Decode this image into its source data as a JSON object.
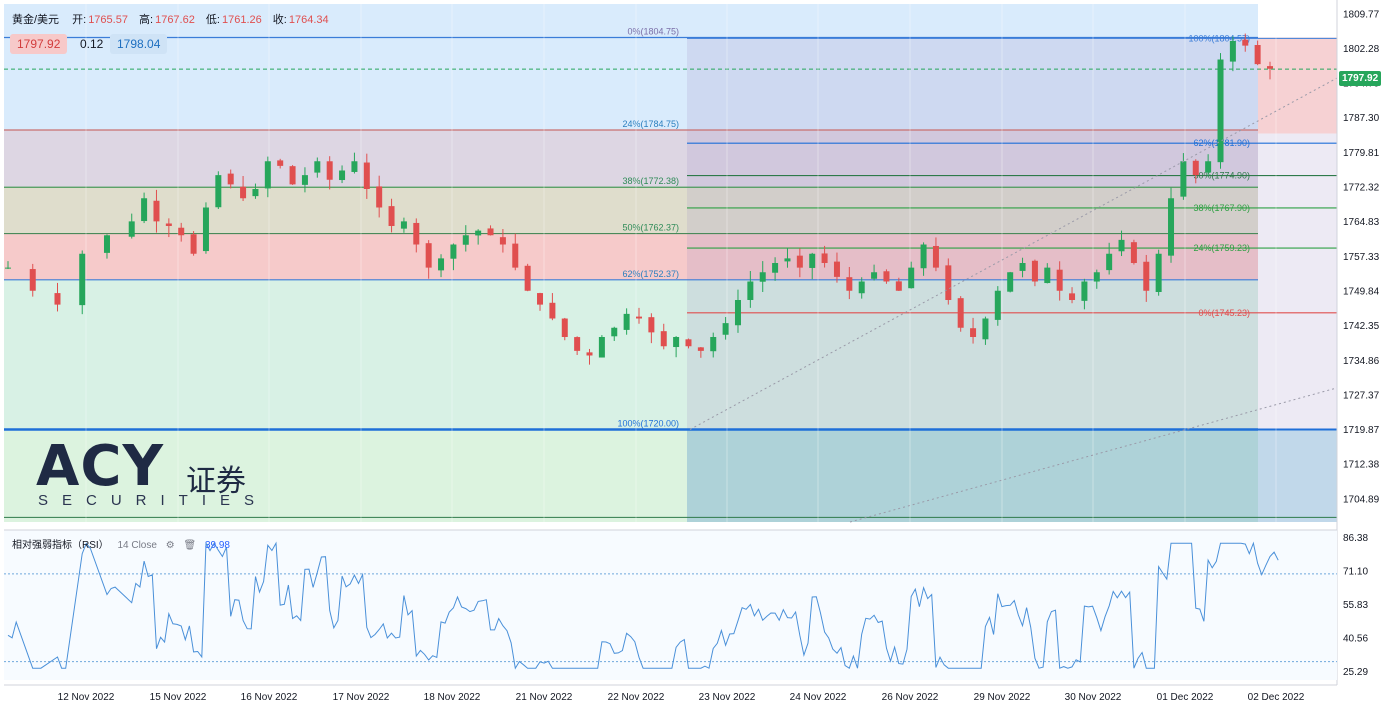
{
  "header": {
    "symbol": "黄金/美元",
    "open_label": "开:",
    "open": "1765.57",
    "high_label": "高:",
    "high": "1767.62",
    "low_label": "低:",
    "low": "1761.26",
    "close_label": "收:",
    "close": "1764.34"
  },
  "trade": {
    "sell": "1797.92",
    "spread": "0.12",
    "buy": "1798.04"
  },
  "logo": {
    "brand": "ACY",
    "cn": "证券",
    "sub": "SECURITIES"
  },
  "rsi": {
    "name": "相对强弱指标（RSI）",
    "params": "14 Close",
    "value": "39.98"
  },
  "last_price": "1797.92",
  "colors": {
    "up": "#26a65b",
    "down": "#e04f4f",
    "rsi_line": "#4a90d9",
    "fib_blue": "#3b7dd8",
    "fib_green": "#2ea043",
    "fib_red": "#e04f4f"
  },
  "chart_data": {
    "type": "candlestick",
    "title": "",
    "ylim": [
      1700,
      1812
    ],
    "y_ticks": [
      1809.77,
      1802.28,
      1794.79,
      1787.3,
      1779.81,
      1772.32,
      1764.83,
      1757.33,
      1749.84,
      1742.35,
      1734.86,
      1727.37,
      1719.87,
      1712.38,
      1704.89
    ],
    "x_ticks": [
      "12 Nov 2022",
      "15 Nov 2022",
      "16 Nov 2022",
      "17 Nov 2022",
      "18 Nov 2022",
      "21 Nov 2022",
      "22 Nov 2022",
      "23 Nov 2022",
      "24 Nov 2022",
      "26 Nov 2022",
      "29 Nov 2022",
      "30 Nov 2022",
      "01 Dec 2022",
      "02 Dec 2022"
    ],
    "close_path": [
      [
        0,
        1755
      ],
      [
        2,
        1750
      ],
      [
        4,
        1747
      ],
      [
        6,
        1758
      ],
      [
        8,
        1762
      ],
      [
        10,
        1765
      ],
      [
        11,
        1770
      ],
      [
        12,
        1765
      ],
      [
        13,
        1764
      ],
      [
        14,
        1762
      ],
      [
        15,
        1758
      ],
      [
        16,
        1768
      ],
      [
        17,
        1775
      ],
      [
        18,
        1773
      ],
      [
        19,
        1770
      ],
      [
        20,
        1772
      ],
      [
        21,
        1778
      ],
      [
        22,
        1777
      ],
      [
        23,
        1773
      ],
      [
        24,
        1775
      ],
      [
        25,
        1778
      ],
      [
        26,
        1774
      ],
      [
        27,
        1776
      ],
      [
        28,
        1778
      ],
      [
        29,
        1772
      ],
      [
        30,
        1768
      ],
      [
        31,
        1764
      ],
      [
        32,
        1765
      ],
      [
        33,
        1760
      ],
      [
        34,
        1755
      ],
      [
        35,
        1757
      ],
      [
        36,
        1760
      ],
      [
        37,
        1762
      ],
      [
        38,
        1763
      ],
      [
        39,
        1762
      ],
      [
        40,
        1760
      ],
      [
        41,
        1755
      ],
      [
        42,
        1750
      ],
      [
        43,
        1747
      ],
      [
        44,
        1744
      ],
      [
        45,
        1740
      ],
      [
        46,
        1737
      ],
      [
        47,
        1736
      ],
      [
        48,
        1740
      ],
      [
        49,
        1742
      ],
      [
        50,
        1745
      ],
      [
        51,
        1744
      ],
      [
        52,
        1741
      ],
      [
        53,
        1738
      ],
      [
        54,
        1740
      ],
      [
        55,
        1738
      ],
      [
        56,
        1737
      ],
      [
        57,
        1740
      ],
      [
        58,
        1743
      ],
      [
        59,
        1748
      ],
      [
        60,
        1752
      ],
      [
        61,
        1754
      ],
      [
        62,
        1756
      ],
      [
        63,
        1757
      ],
      [
        64,
        1755
      ],
      [
        65,
        1758
      ],
      [
        66,
        1756
      ],
      [
        67,
        1753
      ],
      [
        68,
        1750
      ],
      [
        69,
        1752
      ],
      [
        70,
        1754
      ],
      [
        71,
        1752
      ],
      [
        72,
        1750
      ],
      [
        73,
        1755
      ],
      [
        74,
        1760
      ],
      [
        75,
        1755
      ],
      [
        76,
        1748
      ],
      [
        77,
        1742
      ],
      [
        78,
        1740
      ],
      [
        79,
        1744
      ],
      [
        80,
        1750
      ],
      [
        81,
        1754
      ],
      [
        82,
        1756
      ],
      [
        83,
        1752
      ],
      [
        84,
        1755
      ],
      [
        85,
        1750
      ],
      [
        86,
        1748
      ],
      [
        87,
        1752
      ],
      [
        88,
        1754
      ],
      [
        89,
        1758
      ],
      [
        90,
        1761
      ],
      [
        91,
        1756
      ],
      [
        92,
        1750
      ],
      [
        93,
        1758
      ],
      [
        94,
        1770
      ],
      [
        95,
        1778
      ],
      [
        96,
        1775
      ],
      [
        97,
        1778
      ],
      [
        98,
        1800
      ],
      [
        99,
        1804
      ],
      [
        100,
        1803
      ],
      [
        101,
        1799
      ],
      [
        102,
        1798
      ]
    ],
    "fib_left": {
      "levels": [
        {
          "label": "0%(1804.75)",
          "value": 1804.75
        },
        {
          "label": "24%(1784.75)",
          "value": 1784.75
        },
        {
          "label": "38%(1772.38)",
          "value": 1772.38
        },
        {
          "label": "50%(1762.37)",
          "value": 1762.37
        },
        {
          "label": "62%(1752.37)",
          "value": 1752.37
        },
        {
          "label": "100%(1720.00)",
          "value": 1720.0
        }
      ]
    },
    "fib_right": {
      "levels": [
        {
          "label": "100%(1804.57)",
          "value": 1804.57
        },
        {
          "label": "62%(1781.90)",
          "value": 1781.9
        },
        {
          "label": "50%(1774.90)",
          "value": 1774.9
        },
        {
          "label": "38%(1767.90)",
          "value": 1767.9
        },
        {
          "label": "24%(1759.23)",
          "value": 1759.23
        },
        {
          "label": "0%(1745.23)",
          "value": 1745.23
        }
      ]
    },
    "rsi_panel": {
      "ylim": [
        25.29,
        86.38
      ],
      "y_ticks": [
        86.38,
        71.1,
        55.83,
        40.56,
        25.29
      ],
      "overbought": 70,
      "oversold": 30
    }
  }
}
